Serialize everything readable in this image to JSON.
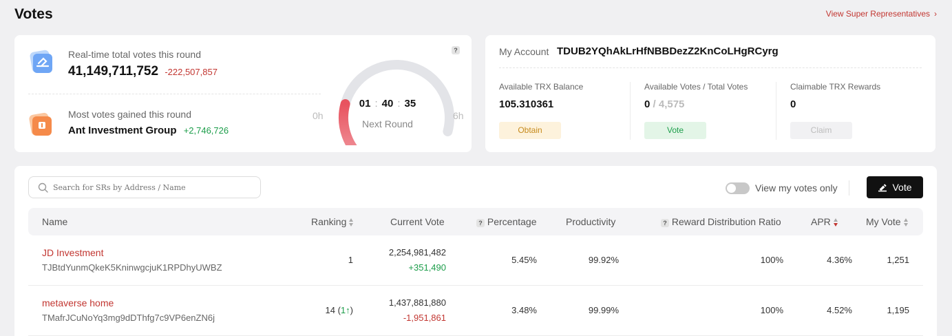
{
  "page": {
    "title": "Votes",
    "view_sr_link": "View Super Representatives"
  },
  "votes_card": {
    "realtime_label": "Real-time total votes this round",
    "total_votes": "41,149,711,752",
    "total_votes_delta": "-222,507,857",
    "most_votes_label": "Most votes gained this round",
    "top_gainer_name": "Ant Investment Group",
    "top_gainer_delta": "+2,746,726",
    "help": "?",
    "countdown": {
      "hh": "01",
      "mm": "40",
      "ss": "35",
      "sep": ":"
    },
    "next_round_label": "Next Round",
    "gauge_min": "0h",
    "gauge_max": "6h",
    "gauge_progress": 0.28
  },
  "account": {
    "label": "My Account",
    "address": "TDUB2YQhAkLrHfNBBDezZ2KnCoLHgRCyrg",
    "balance_label": "Available TRX Balance",
    "balance_value": "105.310361",
    "obtain_label": "Obtain",
    "votes_label": "Available Votes / Total Votes",
    "votes_available": "0",
    "votes_slash": " / ",
    "votes_total": "4,575",
    "vote_label": "Vote",
    "rewards_label": "Claimable TRX Rewards",
    "rewards_value": "0",
    "claim_label": "Claim"
  },
  "list": {
    "search_placeholder": "Search for SRs by Address / Name",
    "toggle_label": "View my votes only",
    "vote_button": "Vote",
    "help": "?",
    "columns": {
      "name": "Name",
      "ranking": "Ranking",
      "current_vote": "Current Vote",
      "percentage": "Percentage",
      "productivity": "Productivity",
      "reward_ratio": "Reward Distribution Ratio",
      "apr": "APR",
      "my_vote": "My Vote"
    },
    "rows": [
      {
        "name": "JD Investment",
        "address": "TJBtdYunmQkeK5KninwgcjuK1RPDhyUWBZ",
        "ranking": "1",
        "ranking_change": "",
        "current_vote": "2,254,981,482",
        "vote_delta": "+351,490",
        "percentage": "5.45%",
        "productivity": "99.92%",
        "reward_ratio": "100%",
        "apr": "4.36%",
        "my_vote": "1,251"
      },
      {
        "name": "metaverse home",
        "address": "TMafrJCuNoYq3mg9dDThfg7c9VP6enZN6j",
        "ranking": "14 (",
        "ranking_change": "1",
        "ranking_close": ")",
        "current_vote": "1,437,881,880",
        "vote_delta": "-1,951,861",
        "percentage": "3.48%",
        "productivity": "99.99%",
        "reward_ratio": "100%",
        "apr": "4.52%",
        "my_vote": "1,195"
      }
    ]
  },
  "colors": {
    "accent_red": "#c23631",
    "positive_green": "#1c9d4a",
    "gauge_track": "#e3e4e8",
    "gauge_fill_start": "#e8535f",
    "gauge_fill_end": "#f19aa1"
  }
}
